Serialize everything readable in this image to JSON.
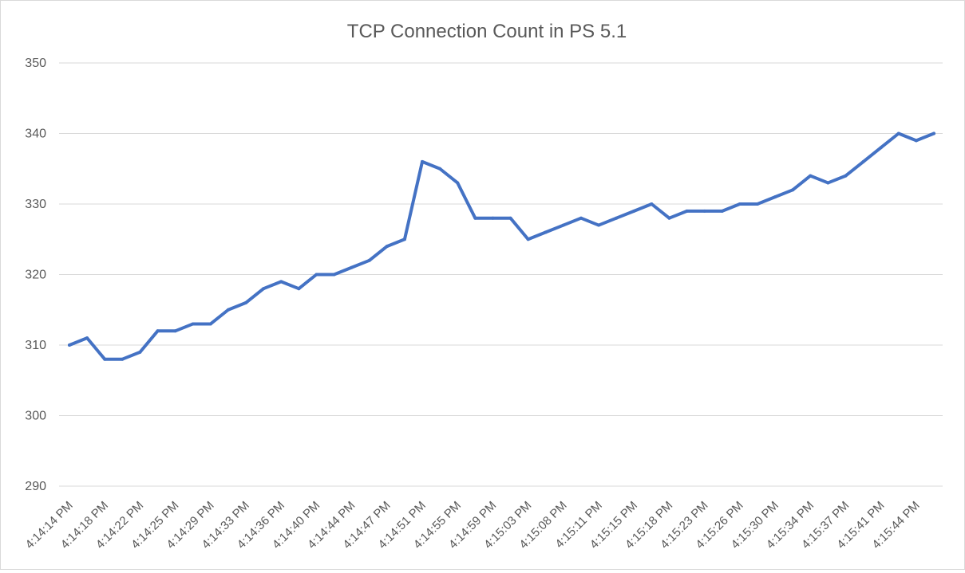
{
  "chart_data": {
    "type": "line",
    "title": "TCP Connection Count in PS 5.1",
    "xlabel": "",
    "ylabel": "",
    "ylim": [
      290,
      350
    ],
    "ytick_step": 10,
    "grid": true,
    "legend": "none",
    "series_color": "#4472c4",
    "x_tick_labels": [
      "4:14:14 PM",
      "4:14:18 PM",
      "4:14:22 PM",
      "4:14:25 PM",
      "4:14:29 PM",
      "4:14:33 PM",
      "4:14:36 PM",
      "4:14:40 PM",
      "4:14:44 PM",
      "4:14:47 PM",
      "4:14:51 PM",
      "4:14:55 PM",
      "4:14:59 PM",
      "4:15:03 PM",
      "4:15:08 PM",
      "4:15:11 PM",
      "4:15:15 PM",
      "4:15:18 PM",
      "4:15:23 PM",
      "4:15:26 PM",
      "4:15:30 PM",
      "4:15:34 PM",
      "4:15:37 PM",
      "4:15:41 PM",
      "4:15:44 PM"
    ],
    "x_tick_every": 2,
    "series": [
      {
        "name": "TCP Connection Count",
        "values": [
          310,
          311,
          308,
          308,
          309,
          312,
          312,
          313,
          313,
          315,
          316,
          318,
          319,
          318,
          320,
          320,
          321,
          322,
          324,
          325,
          336,
          335,
          333,
          328,
          328,
          328,
          325,
          326,
          327,
          328,
          327,
          328,
          329,
          330,
          328,
          329,
          329,
          329,
          330,
          330,
          331,
          332,
          334,
          333,
          334,
          336,
          338,
          340,
          339,
          340
        ]
      }
    ]
  }
}
